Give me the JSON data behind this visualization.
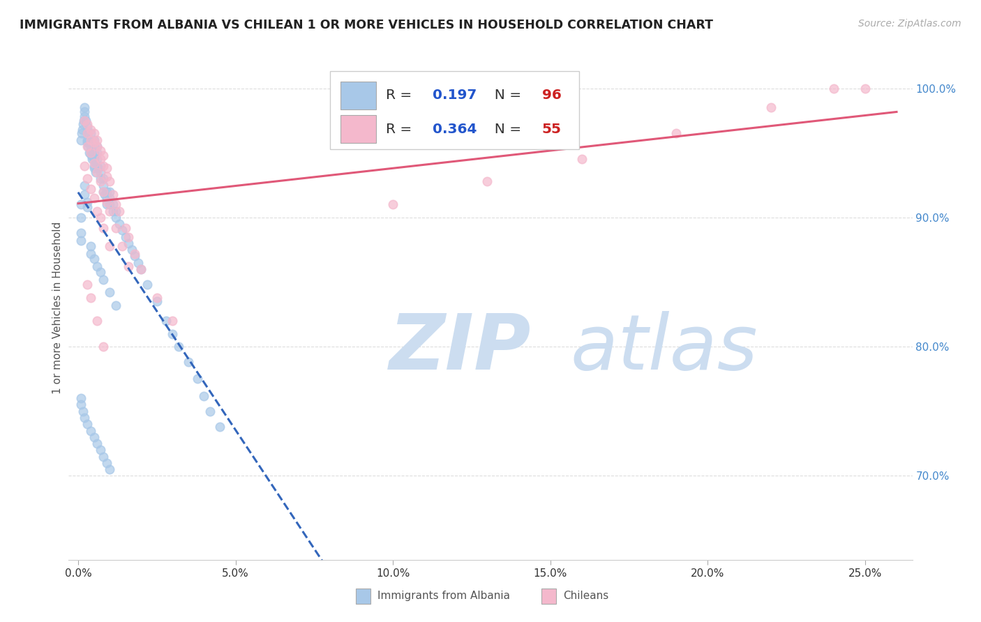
{
  "title": "IMMIGRANTS FROM ALBANIA VS CHILEAN 1 OR MORE VEHICLES IN HOUSEHOLD CORRELATION CHART",
  "source": "Source: ZipAtlas.com",
  "xlabel_ticks": [
    "0.0%",
    "5.0%",
    "10.0%",
    "15.0%",
    "20.0%",
    "25.0%"
  ],
  "xlabel_tick_vals": [
    0.0,
    0.05,
    0.1,
    0.15,
    0.2,
    0.25
  ],
  "ylabel": "1 or more Vehicles in Household",
  "ylabel_ticks": [
    "70.0%",
    "80.0%",
    "90.0%",
    "100.0%"
  ],
  "ylabel_tick_vals": [
    0.7,
    0.8,
    0.9,
    1.0
  ],
  "xlim": [
    -0.003,
    0.265
  ],
  "ylim": [
    0.635,
    1.025
  ],
  "albania_R": 0.197,
  "albania_N": 96,
  "chilean_R": 0.364,
  "chilean_N": 55,
  "albania_color": "#a8c8e8",
  "chilean_color": "#f4b8cc",
  "trendline_albania_color": "#3366bb",
  "trendline_chilean_color": "#e05878",
  "watermark_zip": "ZIP",
  "watermark_atlas": "atlas",
  "watermark_color": "#ccddf0",
  "legend_R_color": "#2255cc",
  "legend_N_color": "#cc2222",
  "background_color": "#ffffff",
  "grid_color": "#dddddd",
  "albania_x": [
    0.0008,
    0.001,
    0.001,
    0.0012,
    0.0013,
    0.0015,
    0.0018,
    0.002,
    0.002,
    0.002,
    0.0025,
    0.003,
    0.003,
    0.003,
    0.003,
    0.0032,
    0.0035,
    0.004,
    0.004,
    0.004,
    0.004,
    0.0042,
    0.0045,
    0.005,
    0.005,
    0.005,
    0.005,
    0.005,
    0.0052,
    0.0055,
    0.006,
    0.006,
    0.006,
    0.006,
    0.0062,
    0.007,
    0.007,
    0.007,
    0.008,
    0.008,
    0.008,
    0.0085,
    0.009,
    0.009,
    0.009,
    0.01,
    0.01,
    0.01,
    0.011,
    0.011,
    0.012,
    0.012,
    0.013,
    0.014,
    0.015,
    0.016,
    0.017,
    0.018,
    0.019,
    0.02,
    0.022,
    0.025,
    0.028,
    0.03,
    0.032,
    0.035,
    0.038,
    0.04,
    0.042,
    0.045,
    0.001,
    0.001,
    0.002,
    0.002,
    0.003,
    0.003,
    0.004,
    0.004,
    0.005,
    0.006,
    0.007,
    0.008,
    0.01,
    0.012,
    0.0008,
    0.0009,
    0.0015,
    0.002,
    0.003,
    0.004,
    0.005,
    0.006,
    0.007,
    0.008,
    0.009,
    0.01
  ],
  "albania_y": [
    0.9,
    0.91,
    0.96,
    0.965,
    0.968,
    0.972,
    0.975,
    0.978,
    0.982,
    0.985,
    0.975,
    0.97,
    0.965,
    0.96,
    0.958,
    0.955,
    0.95,
    0.965,
    0.96,
    0.955,
    0.95,
    0.948,
    0.945,
    0.96,
    0.955,
    0.95,
    0.945,
    0.94,
    0.938,
    0.935,
    0.955,
    0.95,
    0.945,
    0.94,
    0.938,
    0.94,
    0.935,
    0.93,
    0.93,
    0.925,
    0.92,
    0.918,
    0.92,
    0.915,
    0.91,
    0.92,
    0.915,
    0.91,
    0.91,
    0.905,
    0.905,
    0.9,
    0.895,
    0.89,
    0.885,
    0.88,
    0.875,
    0.87,
    0.865,
    0.86,
    0.848,
    0.835,
    0.82,
    0.81,
    0.8,
    0.788,
    0.775,
    0.762,
    0.75,
    0.738,
    0.888,
    0.882,
    0.925,
    0.918,
    0.912,
    0.908,
    0.878,
    0.872,
    0.868,
    0.862,
    0.858,
    0.852,
    0.842,
    0.832,
    0.76,
    0.755,
    0.75,
    0.745,
    0.74,
    0.735,
    0.73,
    0.725,
    0.72,
    0.715,
    0.71,
    0.705
  ],
  "chilean_x": [
    0.002,
    0.003,
    0.003,
    0.004,
    0.004,
    0.005,
    0.005,
    0.006,
    0.006,
    0.007,
    0.007,
    0.008,
    0.008,
    0.009,
    0.009,
    0.01,
    0.011,
    0.012,
    0.013,
    0.015,
    0.016,
    0.018,
    0.02,
    0.025,
    0.03,
    0.003,
    0.004,
    0.005,
    0.006,
    0.007,
    0.008,
    0.009,
    0.01,
    0.012,
    0.014,
    0.016,
    0.003,
    0.004,
    0.006,
    0.008,
    0.002,
    0.003,
    0.004,
    0.005,
    0.006,
    0.007,
    0.008,
    0.01,
    0.24,
    0.25,
    0.22,
    0.19,
    0.16,
    0.13,
    0.1
  ],
  "chilean_y": [
    0.975,
    0.972,
    0.965,
    0.968,
    0.96,
    0.965,
    0.958,
    0.96,
    0.955,
    0.952,
    0.945,
    0.948,
    0.94,
    0.938,
    0.932,
    0.928,
    0.918,
    0.91,
    0.905,
    0.892,
    0.885,
    0.872,
    0.86,
    0.838,
    0.82,
    0.955,
    0.95,
    0.942,
    0.935,
    0.928,
    0.92,
    0.912,
    0.905,
    0.892,
    0.878,
    0.862,
    0.848,
    0.838,
    0.82,
    0.8,
    0.94,
    0.93,
    0.922,
    0.915,
    0.905,
    0.9,
    0.892,
    0.878,
    1.0,
    1.0,
    0.985,
    0.965,
    0.945,
    0.928,
    0.91
  ]
}
